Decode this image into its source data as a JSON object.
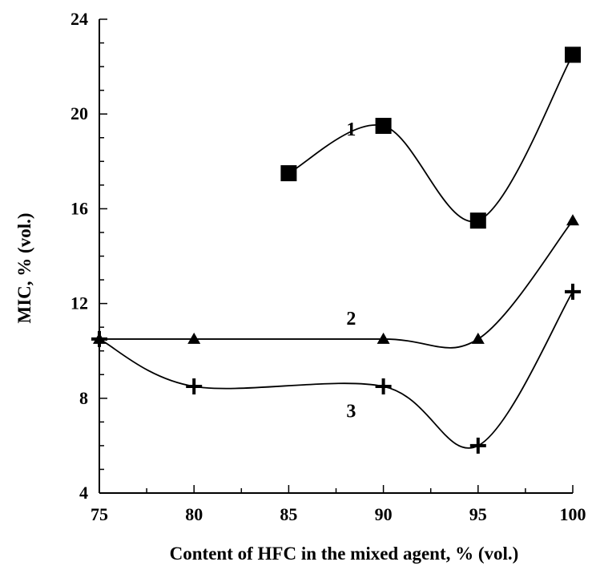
{
  "chart_data": {
    "type": "line",
    "title": "",
    "xlabel": "Content of HFC in the mixed agent, % (vol.)",
    "ylabel": "MIC, % (vol.)",
    "xlim": [
      75,
      100
    ],
    "ylim": [
      4,
      24
    ],
    "x_ticks": [
      75,
      80,
      85,
      90,
      95,
      100
    ],
    "y_ticks": [
      4,
      8,
      12,
      16,
      20,
      24
    ],
    "grid": false,
    "legend": "none",
    "series": [
      {
        "name": "1",
        "marker": "square",
        "x": [
          85,
          90,
          95,
          100
        ],
        "y": [
          17.5,
          19.5,
          15.5,
          22.5
        ]
      },
      {
        "name": "2",
        "marker": "triangle",
        "x": [
          75,
          80,
          90,
          95,
          100
        ],
        "y": [
          10.5,
          10.5,
          10.5,
          10.5,
          15.5
        ]
      },
      {
        "name": "3",
        "marker": "cross",
        "x": [
          75,
          80,
          90,
          95,
          100
        ],
        "y": [
          10.5,
          8.5,
          8.5,
          6.0,
          12.5
        ]
      }
    ],
    "series_label_positions": [
      {
        "series": "1",
        "x": 88.3,
        "y": 19.1
      },
      {
        "series": "2",
        "x": 88.3,
        "y": 11.1
      },
      {
        "series": "3",
        "x": 88.3,
        "y": 7.2
      }
    ]
  }
}
